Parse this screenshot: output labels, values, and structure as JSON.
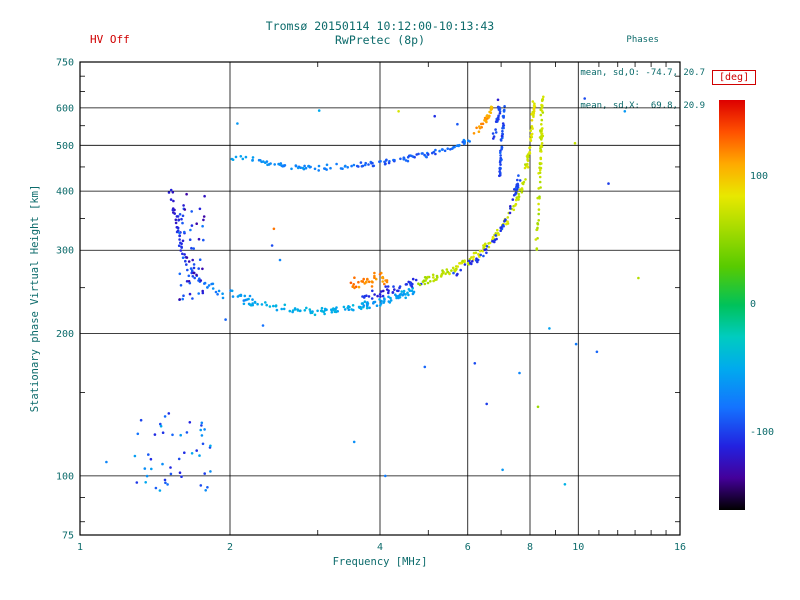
{
  "header": {
    "hv_off": "HV Off",
    "phases_title": "Phases",
    "phases_line1": "mean, sd,O: -74.7, 20.7",
    "phases_line2": "mean, sd,X:  69.8, 20.9"
  },
  "colorbar": {
    "label": "[deg]",
    "ticks": [
      100,
      0,
      -100
    ],
    "position": "right"
  },
  "colors": {
    "accent_red": "#d00000",
    "text_teal": "#0c6b6b",
    "axis_black": "#000000",
    "background": "#ffffff"
  },
  "chart_data": {
    "type": "scatter",
    "title": "Tromsø 20150114 10:12:00-10:13:43",
    "subtitle": "RwPretec (8p)",
    "xlabel": "Frequency [MHz]",
    "ylabel": "Stationary phase Virtual Height [km]",
    "xscale": "log",
    "yscale": "log",
    "xlim": [
      1,
      16
    ],
    "ylim": [
      75,
      750
    ],
    "x_ticks": [
      1,
      2,
      4,
      6,
      8,
      10,
      16
    ],
    "y_ticks": [
      75,
      100,
      200,
      300,
      400,
      500,
      600,
      750
    ],
    "x_grid": [
      2,
      4,
      6,
      8,
      10
    ],
    "y_grid": [
      100,
      200,
      300,
      400,
      500,
      600
    ],
    "x_minor": [
      3,
      5,
      7,
      9,
      11,
      12,
      13,
      14,
      15
    ],
    "y_minor": [
      80,
      90,
      150,
      250,
      350,
      450,
      550,
      650,
      700
    ],
    "grid": true,
    "legend": "colorbar right, phase [deg]",
    "colormap_stops": [
      [
        -160,
        "#000000"
      ],
      [
        -135,
        "#44009a"
      ],
      [
        -110,
        "#2222e0"
      ],
      [
        -80,
        "#1473ff"
      ],
      [
        -50,
        "#00aaee"
      ],
      [
        -25,
        "#00ccc0"
      ],
      [
        0,
        "#00c25a"
      ],
      [
        30,
        "#58cb00"
      ],
      [
        60,
        "#a8dc00"
      ],
      [
        85,
        "#e8e800"
      ],
      [
        110,
        "#ffaa00"
      ],
      [
        135,
        "#ff5100"
      ],
      [
        160,
        "#dd0000"
      ]
    ],
    "traces": [
      {
        "name": "f-trace-left-limb",
        "n": 85,
        "jf": 0.007,
        "jh": 0.014,
        "points": [
          [
            1.52,
            405,
            -110
          ],
          [
            1.56,
            350,
            -118
          ],
          [
            1.6,
            308,
            -100
          ],
          [
            1.66,
            278,
            -95
          ],
          [
            1.73,
            260,
            -85
          ],
          [
            1.86,
            249,
            -70
          ],
          [
            2.06,
            239,
            -60
          ],
          [
            2.3,
            231,
            -55
          ]
        ]
      },
      {
        "name": "f-trace-flat",
        "n": 115,
        "jf": 0.006,
        "jh": 0.01,
        "points": [
          [
            2.3,
            229,
            -48
          ],
          [
            2.7,
            224,
            -45
          ],
          [
            3.1,
            223,
            -45
          ],
          [
            3.5,
            226,
            -50
          ],
          [
            3.9,
            231,
            -55
          ],
          [
            4.3,
            238,
            -58
          ],
          [
            4.7,
            246,
            -55
          ]
        ]
      },
      {
        "name": "f-trace-flat-blue",
        "n": 40,
        "jf": 0.006,
        "jh": 0.012,
        "points": [
          [
            3.7,
            240,
            -105
          ],
          [
            4.1,
            245,
            -110
          ],
          [
            4.5,
            252,
            -105
          ],
          [
            4.9,
            260,
            -100
          ]
        ]
      },
      {
        "name": "orange-patch",
        "n": 38,
        "jf": 0.006,
        "jh": 0.016,
        "points": [
          [
            3.45,
            253,
            120
          ],
          [
            3.7,
            257,
            125
          ],
          [
            3.95,
            261,
            118
          ],
          [
            4.15,
            263,
            122
          ]
        ]
      },
      {
        "name": "f-trace-rise-yellow",
        "n": 175,
        "jf": 0.004,
        "jh": 0.01,
        "points": [
          [
            4.8,
            255,
            58
          ],
          [
            5.2,
            263,
            64
          ],
          [
            5.6,
            273,
            70
          ],
          [
            6.0,
            285,
            74
          ],
          [
            6.4,
            300,
            78
          ],
          [
            6.8,
            320,
            80
          ],
          [
            7.2,
            348,
            76
          ],
          [
            7.55,
            385,
            70
          ],
          [
            7.8,
            430,
            72
          ],
          [
            7.95,
            478,
            76
          ],
          [
            8.05,
            528,
            80
          ],
          [
            8.12,
            578,
            82
          ],
          [
            8.15,
            615,
            85
          ]
        ]
      },
      {
        "name": "f-trace-rise-blue",
        "n": 55,
        "jf": 0.004,
        "jh": 0.01,
        "points": [
          [
            5.3,
            258,
            -95
          ],
          [
            5.8,
            270,
            -100
          ],
          [
            6.3,
            288,
            -105
          ],
          [
            6.7,
            308,
            -98
          ],
          [
            7.05,
            335,
            -100
          ],
          [
            7.3,
            365,
            -105
          ],
          [
            7.5,
            400,
            -98
          ],
          [
            7.65,
            438,
            -95
          ]
        ]
      },
      {
        "name": "o-asymptote-blue",
        "n": 42,
        "jf": 0.003,
        "jh": 0.008,
        "points": [
          [
            6.95,
            432,
            -95
          ],
          [
            7.0,
            480,
            -92
          ],
          [
            7.05,
            530,
            -95
          ],
          [
            7.08,
            575,
            -90
          ],
          [
            7.1,
            606,
            -95
          ]
        ]
      },
      {
        "name": "x-asymptote-yellow",
        "n": 75,
        "jf": 0.003,
        "jh": 0.008,
        "points": [
          [
            8.25,
            300,
            68
          ],
          [
            8.3,
            350,
            64
          ],
          [
            8.35,
            405,
            70
          ],
          [
            8.4,
            462,
            74
          ],
          [
            8.43,
            520,
            70
          ],
          [
            8.45,
            575,
            72
          ],
          [
            8.46,
            635,
            76
          ]
        ]
      },
      {
        "name": "second-hop-trace",
        "n": 135,
        "jf": 0.005,
        "jh": 0.008,
        "points": [
          [
            2.02,
            470,
            -55
          ],
          [
            2.3,
            462,
            -62
          ],
          [
            2.6,
            452,
            -70
          ],
          [
            2.95,
            448,
            -66
          ],
          [
            3.3,
            450,
            -76
          ],
          [
            3.7,
            455,
            -86
          ],
          [
            4.1,
            460,
            -90
          ],
          [
            4.5,
            468,
            -86
          ],
          [
            4.9,
            477,
            -90
          ],
          [
            5.3,
            487,
            -84
          ],
          [
            5.7,
            499,
            -80
          ],
          [
            6.0,
            513,
            -76
          ]
        ]
      },
      {
        "name": "second-hop-orange",
        "n": 32,
        "jf": 0.004,
        "jh": 0.008,
        "points": [
          [
            6.15,
            526,
            110
          ],
          [
            6.35,
            546,
            120
          ],
          [
            6.5,
            566,
            114
          ],
          [
            6.62,
            586,
            110
          ],
          [
            6.72,
            601,
            106
          ]
        ]
      },
      {
        "name": "second-hop-blue-tail",
        "n": 22,
        "jf": 0.003,
        "jh": 0.008,
        "points": [
          [
            6.76,
            520,
            -100
          ],
          [
            6.86,
            556,
            -96
          ],
          [
            6.92,
            586,
            -100
          ],
          [
            6.97,
            606,
            -95
          ]
        ]
      }
    ],
    "clusters": [
      {
        "name": "left-vertical-cluster",
        "f": [
          1.58,
          1.78
        ],
        "h": [
          235,
          395
        ],
        "deg": [
          -135,
          -75
        ],
        "n": 55
      },
      {
        "name": "e-region-cluster",
        "f": [
          1.25,
          1.85
        ],
        "h": [
          93,
          136
        ],
        "deg": [
          -110,
          -50
        ],
        "n": 48
      }
    ],
    "singles": [
      [
        1.13,
        107,
        -70
      ],
      [
        2.07,
        556,
        -60
      ],
      [
        2.45,
        333,
        125
      ],
      [
        2.43,
        307,
        -95
      ],
      [
        2.52,
        286,
        -70
      ],
      [
        3.02,
        592,
        -50
      ],
      [
        4.36,
        590,
        78
      ],
      [
        5.15,
        576,
        -105
      ],
      [
        4.92,
        170,
        -85
      ],
      [
        6.2,
        173,
        -95
      ],
      [
        6.55,
        142,
        -100
      ],
      [
        7.05,
        103,
        -60
      ],
      [
        7.62,
        165,
        -70
      ],
      [
        8.3,
        140,
        55
      ],
      [
        9.4,
        96,
        -45
      ],
      [
        9.85,
        505,
        70
      ],
      [
        10.3,
        628,
        -95
      ],
      [
        10.9,
        183,
        -85
      ],
      [
        12.4,
        590,
        -60
      ],
      [
        13.2,
        262,
        65
      ],
      [
        11.5,
        415,
        -100
      ],
      [
        9.9,
        190,
        -75
      ],
      [
        8.75,
        205,
        -55
      ],
      [
        2.33,
        208,
        -80
      ],
      [
        1.96,
        214,
        -85
      ],
      [
        5.72,
        554,
        -90
      ],
      [
        6.9,
        624,
        -115
      ],
      [
        3.55,
        118,
        -65
      ],
      [
        4.1,
        100,
        -75
      ]
    ]
  }
}
